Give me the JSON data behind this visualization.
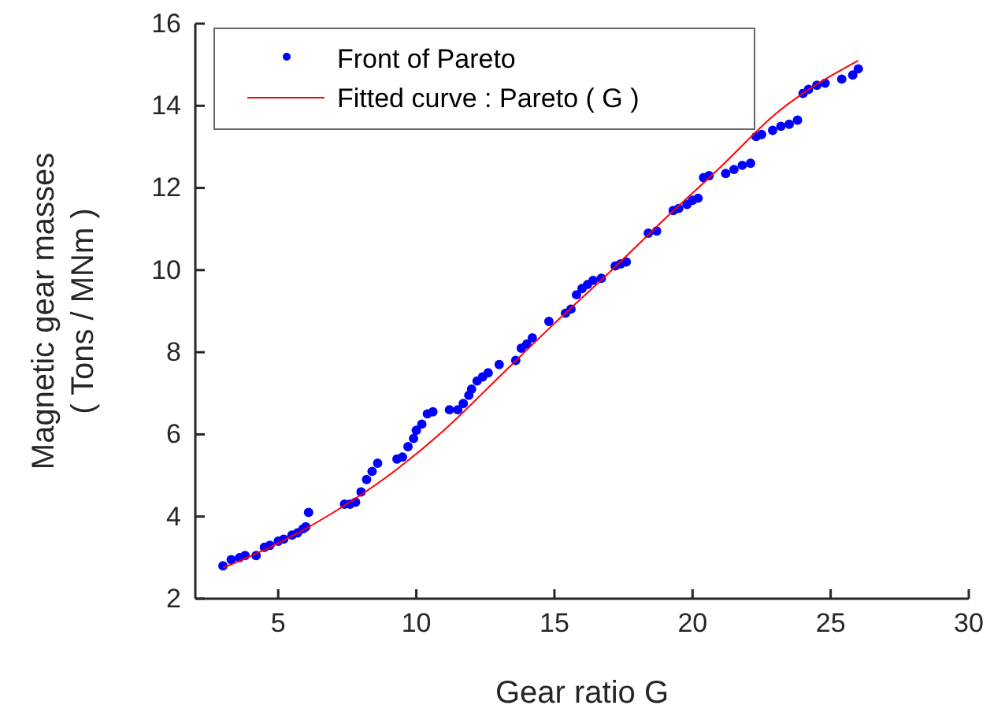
{
  "chart_data": {
    "type": "scatter",
    "xlabel": "Gear ratio G",
    "ylabel": "Magnetic gear masses\n( Tons / MNm )",
    "xlim": [
      2,
      30
    ],
    "ylim": [
      2,
      16
    ],
    "xticks": [
      5,
      10,
      15,
      20,
      25,
      30
    ],
    "yticks": [
      2,
      4,
      6,
      8,
      10,
      12,
      14,
      16
    ],
    "grid": false,
    "legend": "top left",
    "series": [
      {
        "name": "Front of Pareto",
        "marker": "circle",
        "color": "#0000ff",
        "x": [
          3.0,
          3.3,
          3.6,
          3.8,
          4.2,
          4.5,
          4.7,
          5.0,
          5.2,
          5.5,
          5.7,
          5.9,
          6.0,
          6.1,
          7.4,
          7.6,
          7.8,
          8.0,
          8.2,
          8.4,
          8.6,
          9.3,
          9.5,
          9.7,
          9.9,
          10.0,
          10.2,
          10.4,
          10.6,
          11.2,
          11.5,
          11.7,
          11.9,
          12.0,
          12.2,
          12.4,
          12.6,
          13.0,
          13.6,
          13.8,
          14.0,
          14.2,
          14.8,
          15.4,
          15.6,
          15.8,
          16.0,
          16.2,
          16.4,
          16.7,
          17.2,
          17.4,
          17.6,
          18.4,
          18.7,
          19.3,
          19.5,
          19.8,
          20.0,
          20.2,
          20.4,
          20.6,
          21.2,
          21.5,
          21.8,
          22.1,
          22.3,
          22.5,
          22.9,
          23.2,
          23.5,
          23.8,
          24.0,
          24.2,
          24.5,
          24.8,
          25.4,
          25.8,
          26.0
        ],
        "values": [
          2.8,
          2.95,
          3.0,
          3.05,
          3.05,
          3.25,
          3.3,
          3.4,
          3.45,
          3.55,
          3.6,
          3.7,
          3.75,
          4.1,
          4.3,
          4.3,
          4.35,
          4.6,
          4.9,
          5.1,
          5.3,
          5.4,
          5.45,
          5.7,
          5.9,
          6.1,
          6.25,
          6.5,
          6.55,
          6.6,
          6.6,
          6.75,
          6.95,
          7.1,
          7.3,
          7.4,
          7.5,
          7.7,
          7.8,
          8.1,
          8.2,
          8.35,
          8.75,
          8.95,
          9.05,
          9.4,
          9.55,
          9.65,
          9.75,
          9.8,
          10.1,
          10.15,
          10.2,
          10.9,
          10.95,
          11.45,
          11.5,
          11.6,
          11.7,
          11.75,
          12.25,
          12.3,
          12.35,
          12.45,
          12.55,
          12.6,
          13.25,
          13.3,
          13.4,
          13.5,
          13.55,
          13.65,
          14.3,
          14.4,
          14.5,
          14.55,
          14.65,
          14.75,
          14.9
        ]
      },
      {
        "name": "Fitted curve : Pareto ( G )",
        "type": "line",
        "line_style": "solid",
        "color": "#ff0000",
        "x": [
          3,
          5,
          7,
          9,
          11,
          13,
          15,
          17,
          19,
          21,
          23,
          26
        ],
        "values": [
          2.75,
          3.35,
          4.1,
          5.0,
          6.1,
          7.4,
          8.7,
          9.95,
          11.25,
          12.5,
          13.8,
          15.1
        ]
      }
    ]
  }
}
